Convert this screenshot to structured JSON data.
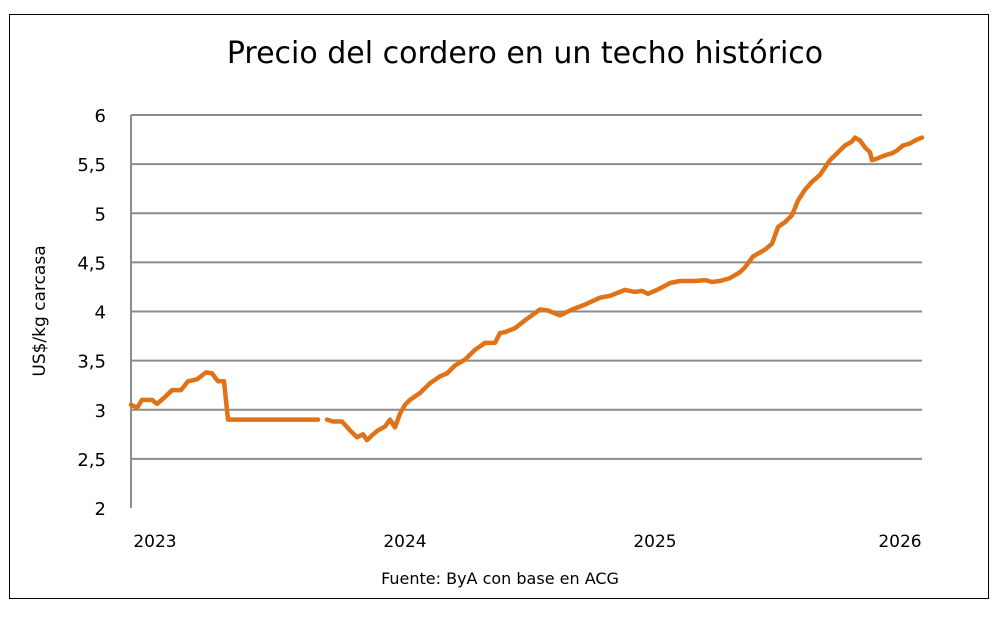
{
  "chart_data": {
    "type": "line",
    "title": "Precio del cordero en un techo histórico",
    "xlabel": "",
    "ylabel": "US$/kg carcasa",
    "source": "Fuente: ByA con base en ACG",
    "ylim": [
      2,
      6
    ],
    "xlim": [
      2022.904,
      2026.068
    ],
    "yticks": [
      2,
      2.5,
      3,
      3.5,
      4,
      4.5,
      5,
      5.5,
      6
    ],
    "ytick_labels": [
      "2",
      "2,5",
      "3",
      "3,5",
      "4",
      "4,5",
      "5",
      "5,5",
      "6"
    ],
    "xticks": [
      2023,
      2024,
      2025,
      2026
    ],
    "xtick_labels": [
      "2023",
      "2024",
      "2025",
      "2026"
    ],
    "grid": "horizontal",
    "color": "#E07318",
    "segments": [
      {
        "x": [
          2022.904,
          2022.928,
          2022.948,
          2022.988,
          2023.008,
          2023.04,
          2023.068,
          2023.104,
          2023.132,
          2023.168,
          2023.204,
          2023.228,
          2023.252,
          2023.276,
          2023.292,
          2023.652
        ],
        "y": [
          3.05,
          3.02,
          3.1,
          3.1,
          3.06,
          3.13,
          3.2,
          3.2,
          3.29,
          3.31,
          3.38,
          3.37,
          3.29,
          3.29,
          2.9,
          2.9
        ]
      },
      {
        "x": [
          2023.688,
          2023.712,
          2023.748,
          2023.78,
          2023.808,
          2023.832,
          2023.848,
          2023.868,
          2023.892,
          2023.92,
          2023.94,
          2023.96,
          2023.98,
          2024.0,
          2024.02,
          2024.06,
          2024.1,
          2024.14,
          2024.168,
          2024.2,
          2024.24,
          2024.28,
          2024.32,
          2024.36,
          2024.38,
          2024.4,
          2024.44,
          2024.48,
          2024.54,
          2024.572,
          2024.62,
          2024.668,
          2024.72,
          2024.78,
          2024.82,
          2024.86,
          2024.88,
          2024.92,
          2024.948,
          2024.972,
          2025.008,
          2025.032,
          2025.06,
          2025.1,
          2025.16,
          2025.2,
          2025.228,
          2025.26,
          2025.3,
          2025.34,
          2025.36,
          2025.392,
          2025.44,
          2025.468,
          2025.492,
          2025.52,
          2025.548,
          2025.572,
          2025.6,
          2025.628,
          2025.66,
          2025.7,
          2025.732,
          2025.76,
          2025.788,
          2025.8,
          2025.82,
          2025.84,
          2025.86,
          2025.868,
          2025.892,
          2025.92,
          2025.948,
          2025.968,
          2025.992,
          2026.02,
          2026.04,
          2026.068
        ],
        "y": [
          2.9,
          2.88,
          2.88,
          2.79,
          2.72,
          2.75,
          2.69,
          2.74,
          2.79,
          2.83,
          2.9,
          2.82,
          2.96,
          3.05,
          3.1,
          3.17,
          3.27,
          3.34,
          3.37,
          3.45,
          3.51,
          3.61,
          3.68,
          3.68,
          3.78,
          3.79,
          3.83,
          3.91,
          4.02,
          4.01,
          3.96,
          4.02,
          4.07,
          4.14,
          4.16,
          4.2,
          4.22,
          4.2,
          4.21,
          4.18,
          4.22,
          4.25,
          4.29,
          4.31,
          4.31,
          4.32,
          4.3,
          4.31,
          4.34,
          4.4,
          4.45,
          4.56,
          4.63,
          4.69,
          4.86,
          4.91,
          4.98,
          5.13,
          5.24,
          5.32,
          5.39,
          5.54,
          5.62,
          5.69,
          5.73,
          5.77,
          5.74,
          5.67,
          5.62,
          5.54,
          5.56,
          5.59,
          5.61,
          5.64,
          5.69,
          5.71,
          5.74,
          5.77
        ]
      }
    ]
  }
}
